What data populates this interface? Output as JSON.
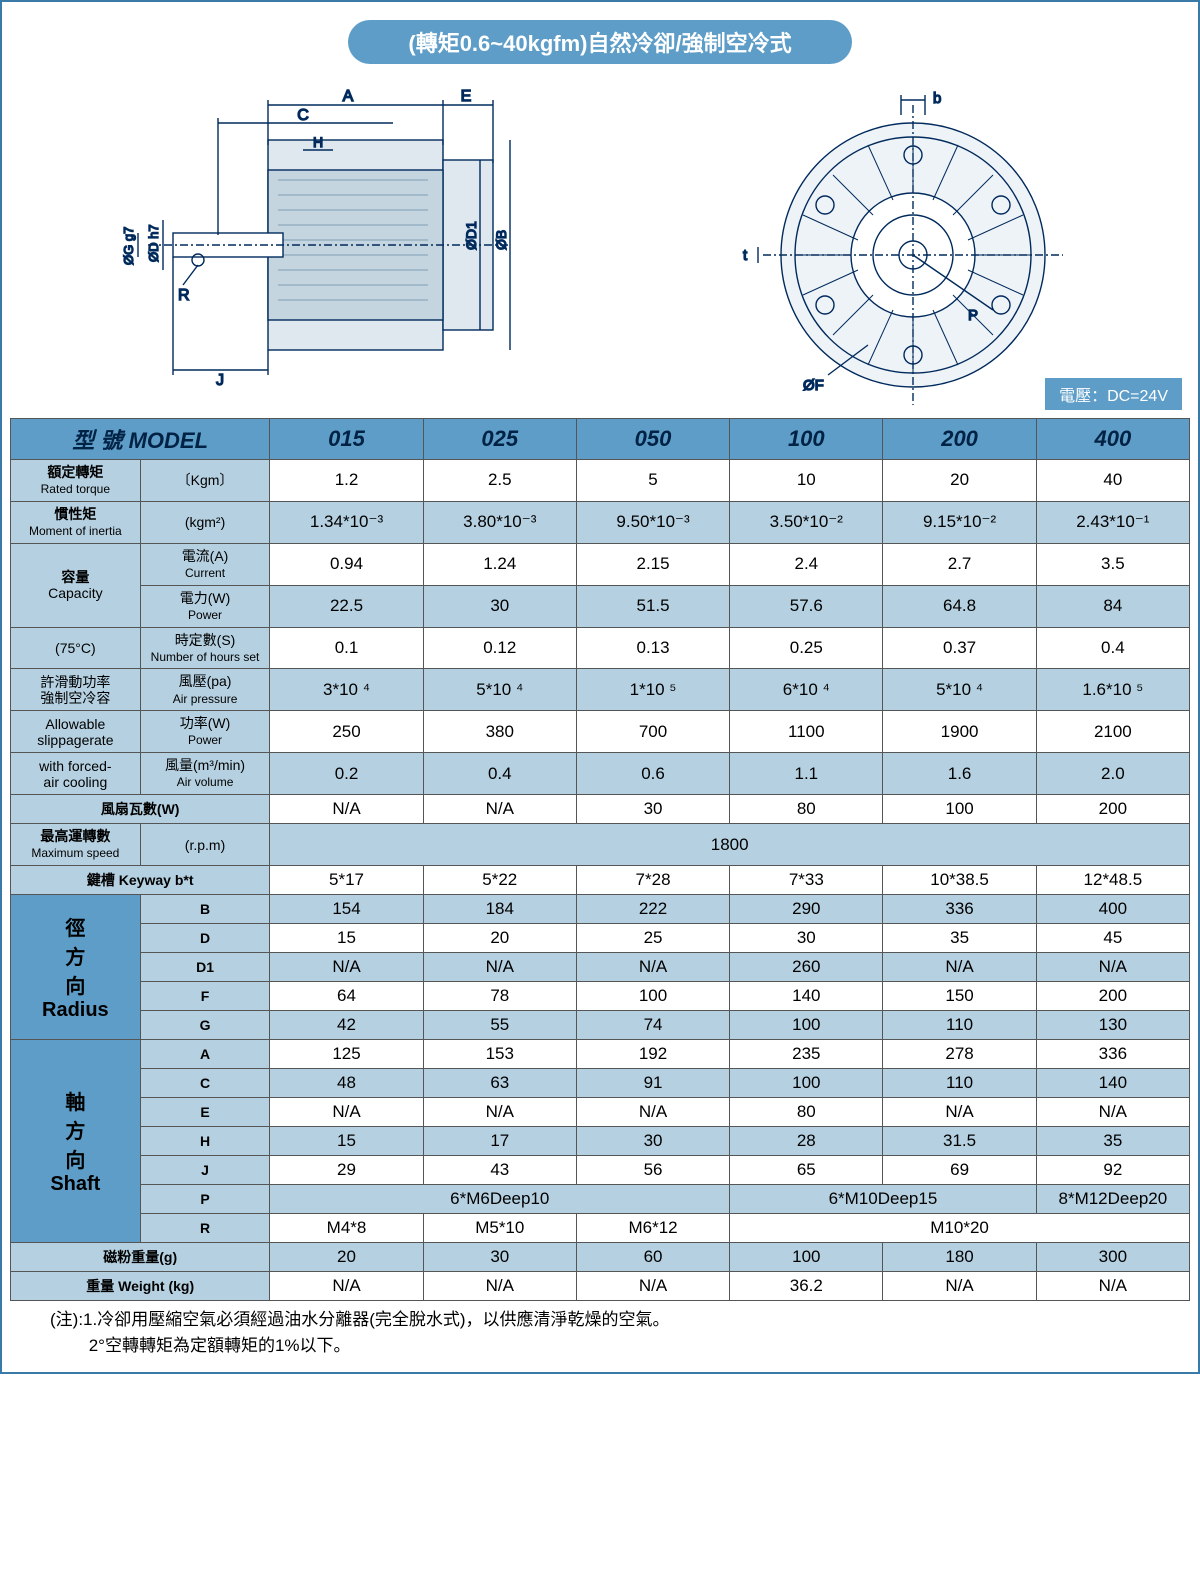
{
  "title": "(轉矩0.6~40kgfm)自然冷卻/強制空冷式",
  "voltage": "電壓：DC=24V",
  "diagram": {
    "side_labels": [
      "A",
      "C",
      "E",
      "H",
      "J",
      "R",
      "ØG g7",
      "ØD h7",
      "ØD1",
      "ØB"
    ],
    "front_labels": [
      "b",
      "t",
      "P",
      "ØF"
    ]
  },
  "colors": {
    "header_bg": "#5d9dc7",
    "label_bg": "#b5d0e0",
    "border": "#3a7aa8",
    "text": "#002244"
  },
  "models_header": "型 號  MODEL",
  "models": [
    "015",
    "025",
    "050",
    "100",
    "200",
    "400"
  ],
  "rows": [
    {
      "label": "額定轉矩\nRated torque",
      "unit": "〔Kgm〕",
      "vals": [
        "1.2",
        "2.5",
        "5",
        "10",
        "20",
        "40"
      ],
      "band": "A"
    },
    {
      "label": "慣性矩\nMoment of inertia",
      "unit": "(kgm²)",
      "vals": [
        "1.34*10⁻³",
        "3.80*10⁻³",
        "9.50*10⁻³",
        "3.50*10⁻²",
        "9.15*10⁻²",
        "2.43*10⁻¹"
      ],
      "band": "B"
    }
  ],
  "capacity": {
    "group_label": "容量\nCapacity",
    "rows": [
      {
        "sub": "電流(A)\nCurrent",
        "vals": [
          "0.94",
          "1.24",
          "2.15",
          "2.4",
          "2.7",
          "3.5"
        ],
        "band": "A"
      },
      {
        "sub": "電力(W)\nPower",
        "vals": [
          "22.5",
          "30",
          "51.5",
          "57.6",
          "64.8",
          "84"
        ],
        "band": "B"
      }
    ]
  },
  "seventy5c": {
    "label": "(75°C)",
    "sub": "時定數(S)\nNumber of hours set",
    "vals": [
      "0.1",
      "0.12",
      "0.13",
      "0.25",
      "0.37",
      "0.4"
    ],
    "band": "A"
  },
  "slip": {
    "group1": "許滑動功率\n強制空冷容",
    "group2": "Allowable\nslippagerate",
    "group3": "with forced-\nair cooling",
    "rows": [
      {
        "sub": "風壓(pa)\nAir pressure",
        "vals": [
          "3*10 ⁴",
          "5*10 ⁴",
          "1*10 ⁵",
          "6*10 ⁴",
          "5*10 ⁴",
          "1.6*10 ⁵"
        ],
        "band": "B"
      },
      {
        "sub": "功率(W)\nPower",
        "vals": [
          "250",
          "380",
          "700",
          "1100",
          "1900",
          "2100"
        ],
        "band": "A"
      },
      {
        "sub": "風量(m³/min)\nAir volume",
        "vals": [
          "0.2",
          "0.4",
          "0.6",
          "1.1",
          "1.6",
          "2.0"
        ],
        "band": "B"
      }
    ]
  },
  "fan": {
    "label": "風扇瓦數(W)",
    "vals": [
      "N/A",
      "N/A",
      "30",
      "80",
      "100",
      "200"
    ],
    "band": "A"
  },
  "maxspeed": {
    "label": "最高運轉數\nMaximum speed",
    "unit": "(r.p.m)",
    "val": "1800",
    "band": "B"
  },
  "keyway": {
    "label": "鍵槽 Keyway b*t",
    "vals": [
      "5*17",
      "5*22",
      "7*28",
      "7*33",
      "10*38.5",
      "12*48.5"
    ],
    "band": "A"
  },
  "radius": {
    "group": "徑\n方\n向\nRadius",
    "rows": [
      {
        "k": "B",
        "vals": [
          "154",
          "184",
          "222",
          "290",
          "336",
          "400"
        ],
        "band": "B"
      },
      {
        "k": "D",
        "vals": [
          "15",
          "20",
          "25",
          "30",
          "35",
          "45"
        ],
        "band": "A"
      },
      {
        "k": "D1",
        "vals": [
          "N/A",
          "N/A",
          "N/A",
          "260",
          "N/A",
          "N/A"
        ],
        "band": "B"
      },
      {
        "k": "F",
        "vals": [
          "64",
          "78",
          "100",
          "140",
          "150",
          "200"
        ],
        "band": "A"
      },
      {
        "k": "G",
        "vals": [
          "42",
          "55",
          "74",
          "100",
          "110",
          "130"
        ],
        "band": "B"
      }
    ]
  },
  "shaft": {
    "group": "軸\n方\n向\nShaft",
    "rows": [
      {
        "k": "A",
        "vals": [
          "125",
          "153",
          "192",
          "235",
          "278",
          "336"
        ],
        "band": "A"
      },
      {
        "k": "C",
        "vals": [
          "48",
          "63",
          "91",
          "100",
          "110",
          "140"
        ],
        "band": "B"
      },
      {
        "k": "E",
        "vals": [
          "N/A",
          "N/A",
          "N/A",
          "80",
          "N/A",
          "N/A"
        ],
        "band": "A"
      },
      {
        "k": "H",
        "vals": [
          "15",
          "17",
          "30",
          "28",
          "31.5",
          "35"
        ],
        "band": "B"
      },
      {
        "k": "J",
        "vals": [
          "29",
          "43",
          "56",
          "65",
          "69",
          "92"
        ],
        "band": "A"
      }
    ],
    "p_row": {
      "k": "P",
      "spans": [
        {
          "txt": "6*M6Deep10",
          "cols": 3
        },
        {
          "txt": "6*M10Deep15",
          "cols": 2
        },
        {
          "txt": "8*M12Deep20",
          "cols": 1
        }
      ],
      "band": "B"
    },
    "r_row": {
      "k": "R",
      "spans": [
        {
          "txt": "M4*8",
          "cols": 1
        },
        {
          "txt": "M5*10",
          "cols": 1
        },
        {
          "txt": "M6*12",
          "cols": 1
        },
        {
          "txt": "M10*20",
          "cols": 3
        }
      ],
      "band": "A"
    }
  },
  "powder": {
    "label": "磁粉重量(g)",
    "vals": [
      "20",
      "30",
      "60",
      "100",
      "180",
      "300"
    ],
    "band": "B"
  },
  "weight": {
    "label": "重量 Weight (kg)",
    "vals": [
      "N/A",
      "N/A",
      "N/A",
      "36.2",
      "N/A",
      "N/A"
    ],
    "band": "A"
  },
  "notes": [
    "(注):1.冷卻用壓縮空氣必須經過油水分離器(完全脫水式)，以供應清淨乾燥的空氣。",
    "　　 2°空轉轉矩為定額轉矩的1%以下。"
  ]
}
